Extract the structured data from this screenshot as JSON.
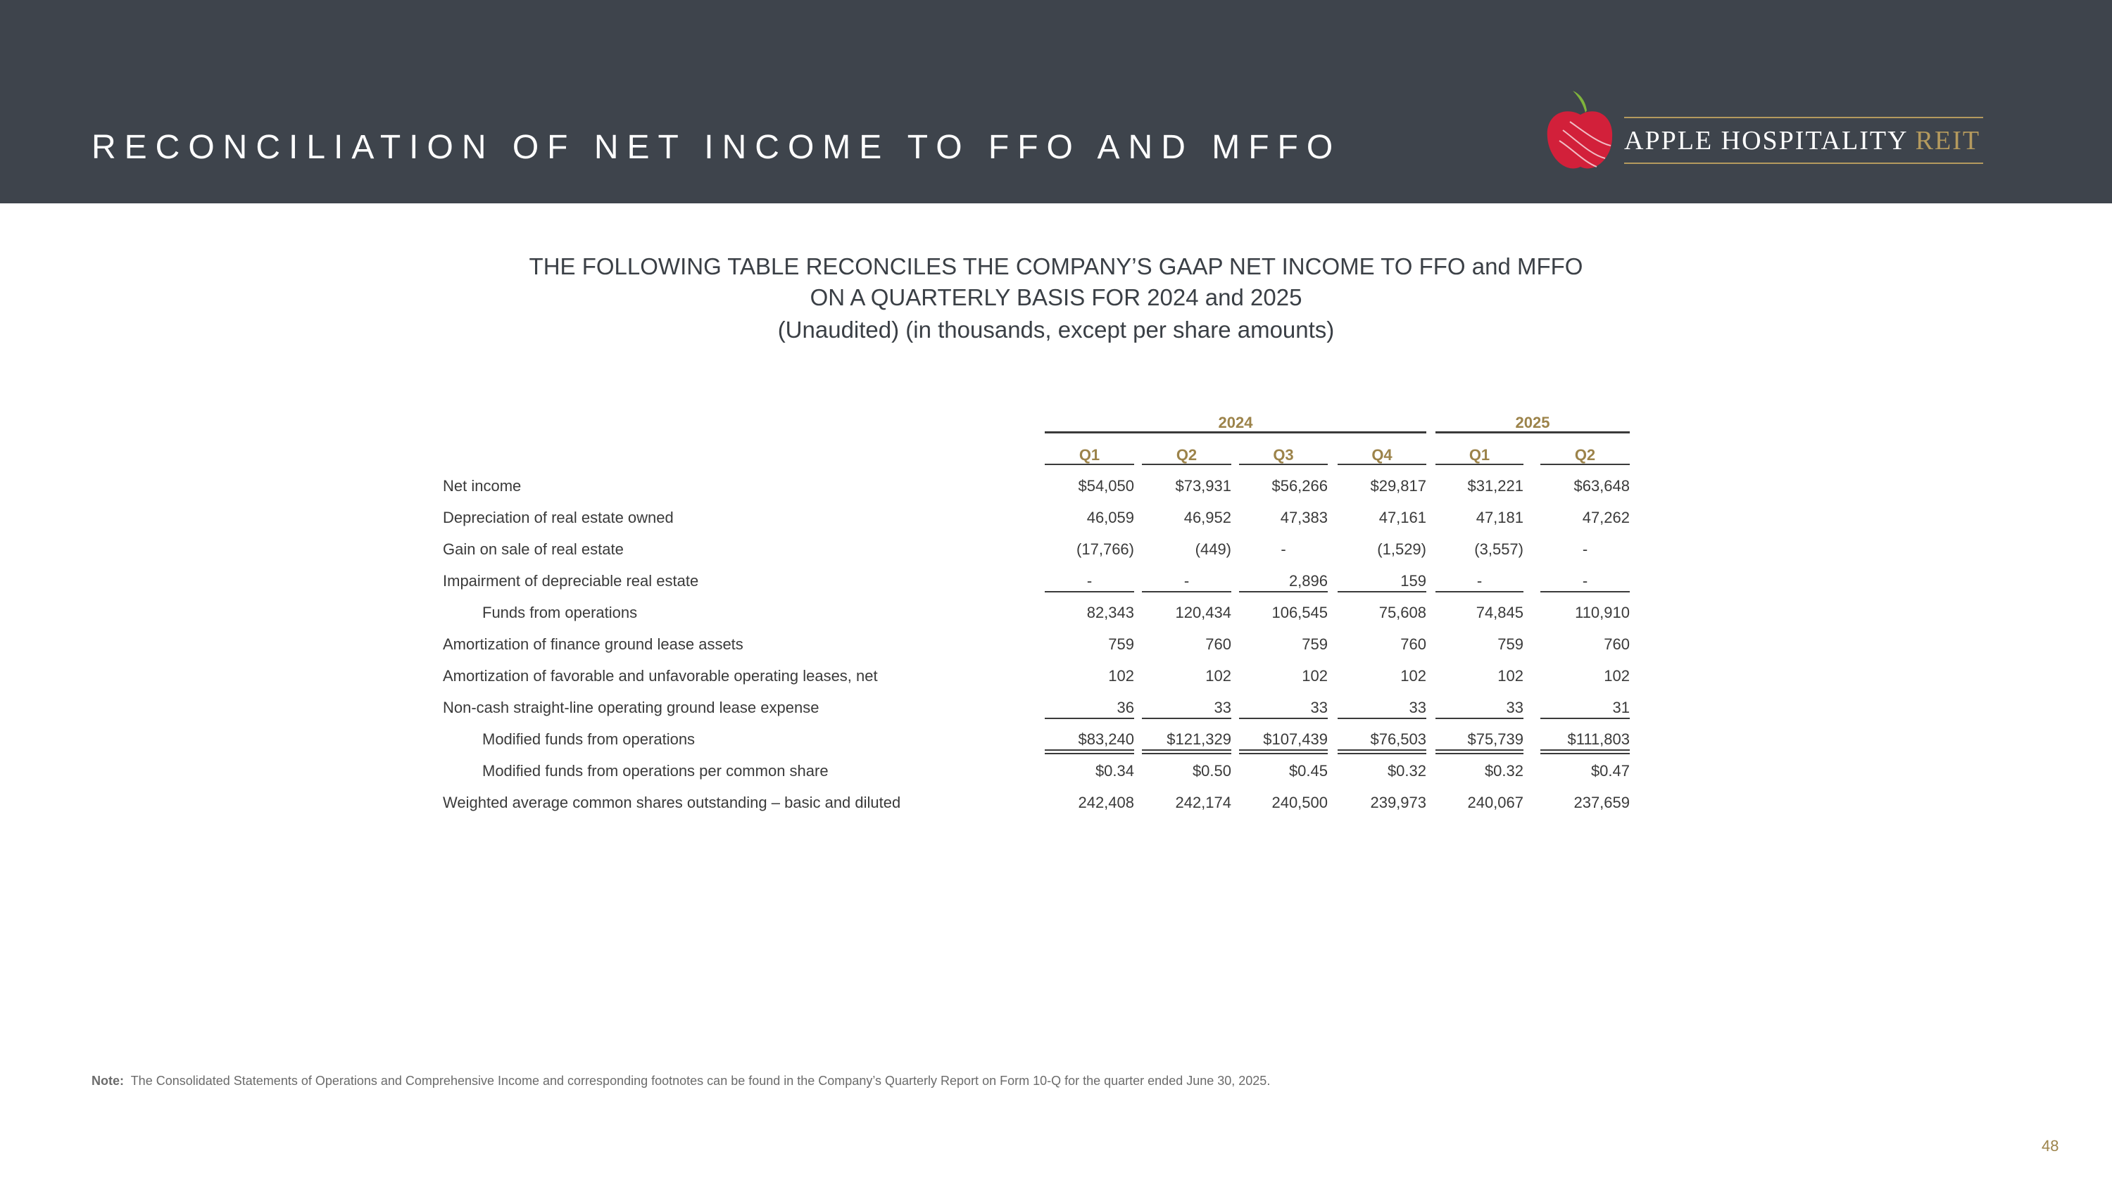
{
  "header": {
    "title": "RECONCILIATION OF NET INCOME TO FFO AND MFFO",
    "logo": {
      "name": "APPLE HOSPITALITY",
      "suffix": "REIT"
    }
  },
  "subtitle": [
    "THE FOLLOWING TABLE RECONCILES THE COMPANY’S GAAP NET INCOME TO FFO and MFFO",
    "ON A QUARTERLY BASIS FOR 2024 and 2025",
    "(Unaudited) (in thousands, except per share amounts)"
  ],
  "table": {
    "years": [
      "2024",
      "2025"
    ],
    "quarters": [
      "Q1",
      "Q2",
      "Q3",
      "Q4",
      "Q1",
      "Q2"
    ],
    "rows": [
      {
        "label": "Net income",
        "values": [
          "$54,050",
          "$73,931",
          "$56,266",
          "$29,817",
          "$31,221",
          "$63,648"
        ]
      },
      {
        "label": "Depreciation of real estate owned",
        "values": [
          "46,059",
          "46,952",
          "47,383",
          "47,161",
          "47,181",
          "47,262"
        ]
      },
      {
        "label": "Gain on sale of real estate",
        "values": [
          "(17,766)",
          "(449)",
          "-",
          "(1,529)",
          "(3,557)",
          "-"
        ]
      },
      {
        "label": "Impairment of depreciable real estate",
        "values": [
          "-",
          "-",
          "2,896",
          "159",
          "-",
          "-"
        ]
      },
      {
        "label": "Funds from operations",
        "values": [
          "82,343",
          "120,434",
          "106,545",
          "75,608",
          "74,845",
          "110,910"
        ]
      },
      {
        "label": "Amortization of finance ground lease assets",
        "values": [
          "759",
          "760",
          "759",
          "760",
          "759",
          "760"
        ]
      },
      {
        "label": "Amortization of favorable and unfavorable operating leases, net",
        "values": [
          "102",
          "102",
          "102",
          "102",
          "102",
          "102"
        ]
      },
      {
        "label": "Non-cash straight-line operating ground lease expense",
        "values": [
          "36",
          "33",
          "33",
          "33",
          "33",
          "31"
        ]
      },
      {
        "label": "Modified funds from operations",
        "values": [
          "$83,240",
          "$121,329",
          "$107,439",
          "$76,503",
          "$75,739",
          "$111,803"
        ]
      },
      {
        "label": "Modified funds from operations per common share",
        "values": [
          "$0.34",
          "$0.50",
          "$0.45",
          "$0.32",
          "$0.32",
          "$0.47"
        ]
      },
      {
        "label": "Weighted average common shares outstanding – basic and diluted",
        "values": [
          "242,408",
          "242,174",
          "240,500",
          "239,973",
          "240,067",
          "237,659"
        ]
      }
    ]
  },
  "note": {
    "label": "Note:",
    "text": "The Consolidated Statements of Operations and Comprehensive Income and corresponding footnotes can be found in the Company’s Quarterly Report on Form 10-Q for the quarter ended June 30, 2025."
  },
  "page_number": "48"
}
